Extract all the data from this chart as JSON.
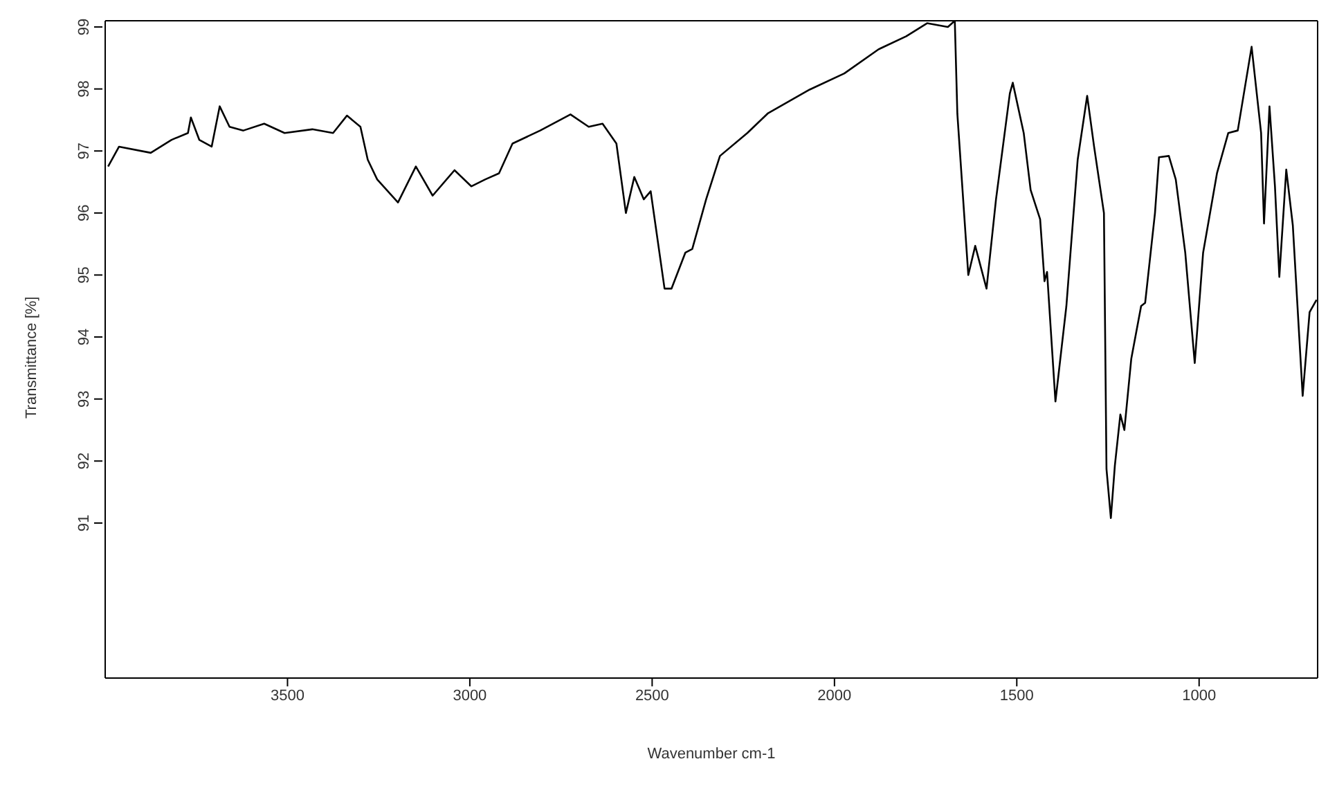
{
  "chart_data": {
    "type": "line",
    "xlabel": "Wavenumber cm-1",
    "ylabel": "Transmittance [%]",
    "xlim": [
      4000,
      675
    ],
    "xticks": [
      3500,
      3000,
      2500,
      2000,
      1500,
      1000
    ],
    "ylim": [
      88.5,
      99.1
    ],
    "yticks": [
      91,
      92,
      93,
      94,
      95,
      96,
      97,
      98,
      99
    ],
    "legend": false,
    "marker": "none",
    "line_style": "solid",
    "series": [
      {
        "color": "#000000",
        "x": [
          3992,
          3962,
          3875,
          3818,
          3773,
          3765,
          3742,
          3708,
          3686,
          3659,
          3621,
          3564,
          3508,
          3432,
          3375,
          3337,
          3300,
          3280,
          3254,
          3197,
          3148,
          3102,
          3042,
          2996,
          2958,
          2920,
          2883,
          2807,
          2724,
          2674,
          2636,
          2598,
          2572,
          2549,
          2523,
          2504,
          2466,
          2447,
          2409,
          2390,
          2352,
          2314,
          2239,
          2182,
          2068,
          1973,
          1879,
          1803,
          1746,
          1689,
          1670,
          1663,
          1633,
          1614,
          1583,
          1557,
          1519,
          1511,
          1481,
          1462,
          1436,
          1424,
          1417,
          1394,
          1364,
          1333,
          1307,
          1288,
          1261,
          1254,
          1242,
          1231,
          1216,
          1205,
          1186,
          1159,
          1148,
          1121,
          1110,
          1083,
          1064,
          1038,
          1012,
          989,
          951,
          920,
          894,
          856,
          830,
          822,
          807,
          792,
          780,
          761,
          743,
          716,
          697,
          678
        ],
        "values": [
          96.75,
          97.07,
          96.97,
          97.18,
          97.29,
          97.54,
          97.18,
          97.07,
          97.72,
          97.39,
          97.33,
          97.44,
          97.29,
          97.35,
          97.29,
          97.57,
          97.39,
          96.86,
          96.54,
          96.17,
          96.75,
          96.28,
          96.69,
          96.43,
          96.54,
          96.64,
          97.12,
          97.33,
          97.59,
          97.39,
          97.44,
          97.12,
          96.0,
          96.58,
          96.22,
          96.35,
          94.78,
          94.78,
          95.36,
          95.42,
          96.22,
          96.92,
          97.29,
          97.61,
          97.99,
          98.25,
          98.64,
          98.85,
          99.06,
          99.0,
          99.1,
          97.6,
          95.0,
          95.47,
          94.78,
          96.22,
          97.93,
          98.1,
          97.29,
          96.37,
          95.9,
          94.9,
          95.05,
          92.96,
          94.5,
          96.86,
          97.89,
          97.07,
          96.0,
          91.87,
          91.08,
          91.93,
          92.75,
          92.5,
          93.65,
          94.5,
          94.55,
          96.0,
          96.9,
          96.92,
          96.54,
          95.36,
          93.58,
          95.36,
          96.64,
          97.29,
          97.33,
          98.68,
          97.29,
          95.83,
          97.72,
          96.43,
          94.97,
          96.7,
          95.8,
          93.05,
          94.4,
          94.6
        ]
      }
    ]
  }
}
